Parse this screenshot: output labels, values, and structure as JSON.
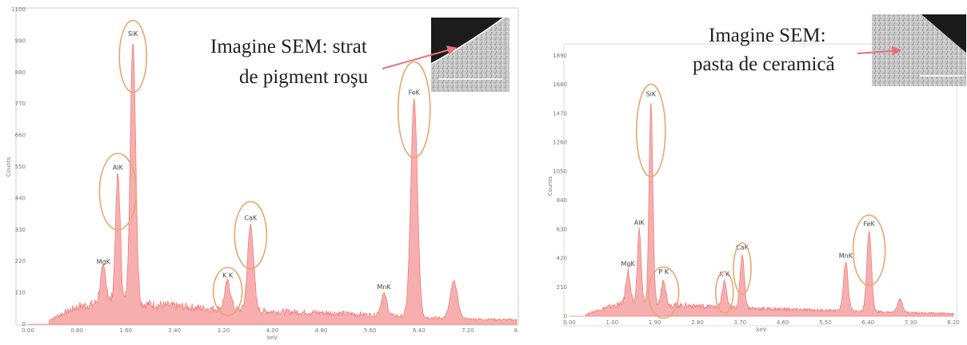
{
  "colors": {
    "spectrum": "#f08080",
    "spectrum_fill": "#f6a0a0",
    "ellipse": "#e6a872",
    "arrow": "#e8707c",
    "frame": "#cccccc"
  },
  "chart_data": [
    {
      "type": "area",
      "caption": "Imagine SEM: strat de pigment roşu",
      "xlabel": "keV",
      "ylabel": "Counts",
      "xlim": [
        0.0,
        8.1
      ],
      "ylim": [
        0,
        1100
      ],
      "x_ticks": [
        "0.00",
        "0.80",
        "1.60",
        "2.40",
        "3.20",
        "4.00",
        "4.80",
        "5.60",
        "6.40",
        "7.20",
        "8."
      ],
      "y_ticks": [
        "0",
        "110",
        "220",
        "330",
        "440",
        "550",
        "660",
        "770",
        "880",
        "990",
        "1100"
      ],
      "background": {
        "x": [
          0.35,
          0.8,
          1.2,
          2.0,
          3.0,
          4.0,
          5.0,
          6.0,
          7.0,
          8.1
        ],
        "y": [
          15,
          60,
          75,
          70,
          55,
          45,
          40,
          30,
          20,
          15
        ]
      },
      "peaks": [
        {
          "label": "MgK",
          "x": 1.25,
          "y": 120,
          "w": 0.05,
          "ellipse": false
        },
        {
          "label": "AlK",
          "x": 1.49,
          "y": 450,
          "w": 0.04,
          "ellipse": true
        },
        {
          "label": "SiK",
          "x": 1.74,
          "y": 920,
          "w": 0.045,
          "ellipse": true
        },
        {
          "label": "K K",
          "x": 3.31,
          "y": 95,
          "w": 0.05,
          "ellipse": true
        },
        {
          "label": "CaK",
          "x": 3.69,
          "y": 300,
          "w": 0.05,
          "ellipse": true
        },
        {
          "label": "MnK",
          "x": 5.9,
          "y": 75,
          "w": 0.05,
          "ellipse": false
        },
        {
          "label": "FeK",
          "x": 6.4,
          "y": 760,
          "w": 0.055,
          "ellipse": true
        },
        {
          "label": "",
          "x": 7.06,
          "y": 130,
          "w": 0.06,
          "ellipse": false
        }
      ]
    },
    {
      "type": "area",
      "caption": "Imagine SEM: pasta de ceramică",
      "xlabel": "keV",
      "ylabel": "Counts",
      "xlim": [
        0.0,
        8.2
      ],
      "ylim": [
        0,
        2000
      ],
      "x_ticks": [
        "0.00",
        "1.00",
        "1.90",
        "2.80",
        "3.70",
        "4.60",
        "5.50",
        "6.40",
        "7.30",
        "8.20"
      ],
      "y_ticks": [
        "0",
        "210",
        "420",
        "630",
        "840",
        "1050",
        "1260",
        "1470",
        "1680",
        "1890"
      ],
      "background": {
        "x": [
          0.35,
          0.8,
          1.2,
          2.0,
          3.0,
          4.0,
          5.0,
          6.0,
          7.0,
          8.2
        ],
        "y": [
          15,
          70,
          100,
          90,
          75,
          60,
          50,
          40,
          30,
          20
        ]
      },
      "peaks": [
        {
          "label": "MgK",
          "x": 1.25,
          "y": 250,
          "w": 0.045,
          "ellipse": false
        },
        {
          "label": "AlK",
          "x": 1.49,
          "y": 570,
          "w": 0.04,
          "ellipse": false
        },
        {
          "label": "SiK",
          "x": 1.74,
          "y": 1560,
          "w": 0.04,
          "ellipse": true
        },
        {
          "label": "P K",
          "x": 2.01,
          "y": 200,
          "w": 0.045,
          "ellipse": true
        },
        {
          "label": "K K",
          "x": 3.31,
          "y": 200,
          "w": 0.045,
          "ellipse": true
        },
        {
          "label": "CaK",
          "x": 3.69,
          "y": 410,
          "w": 0.045,
          "ellipse": true
        },
        {
          "label": "MnK",
          "x": 5.9,
          "y": 370,
          "w": 0.05,
          "ellipse": false
        },
        {
          "label": "FeK",
          "x": 6.4,
          "y": 620,
          "w": 0.05,
          "ellipse": true
        },
        {
          "label": "",
          "x": 7.06,
          "y": 100,
          "w": 0.055,
          "ellipse": false
        }
      ]
    }
  ]
}
